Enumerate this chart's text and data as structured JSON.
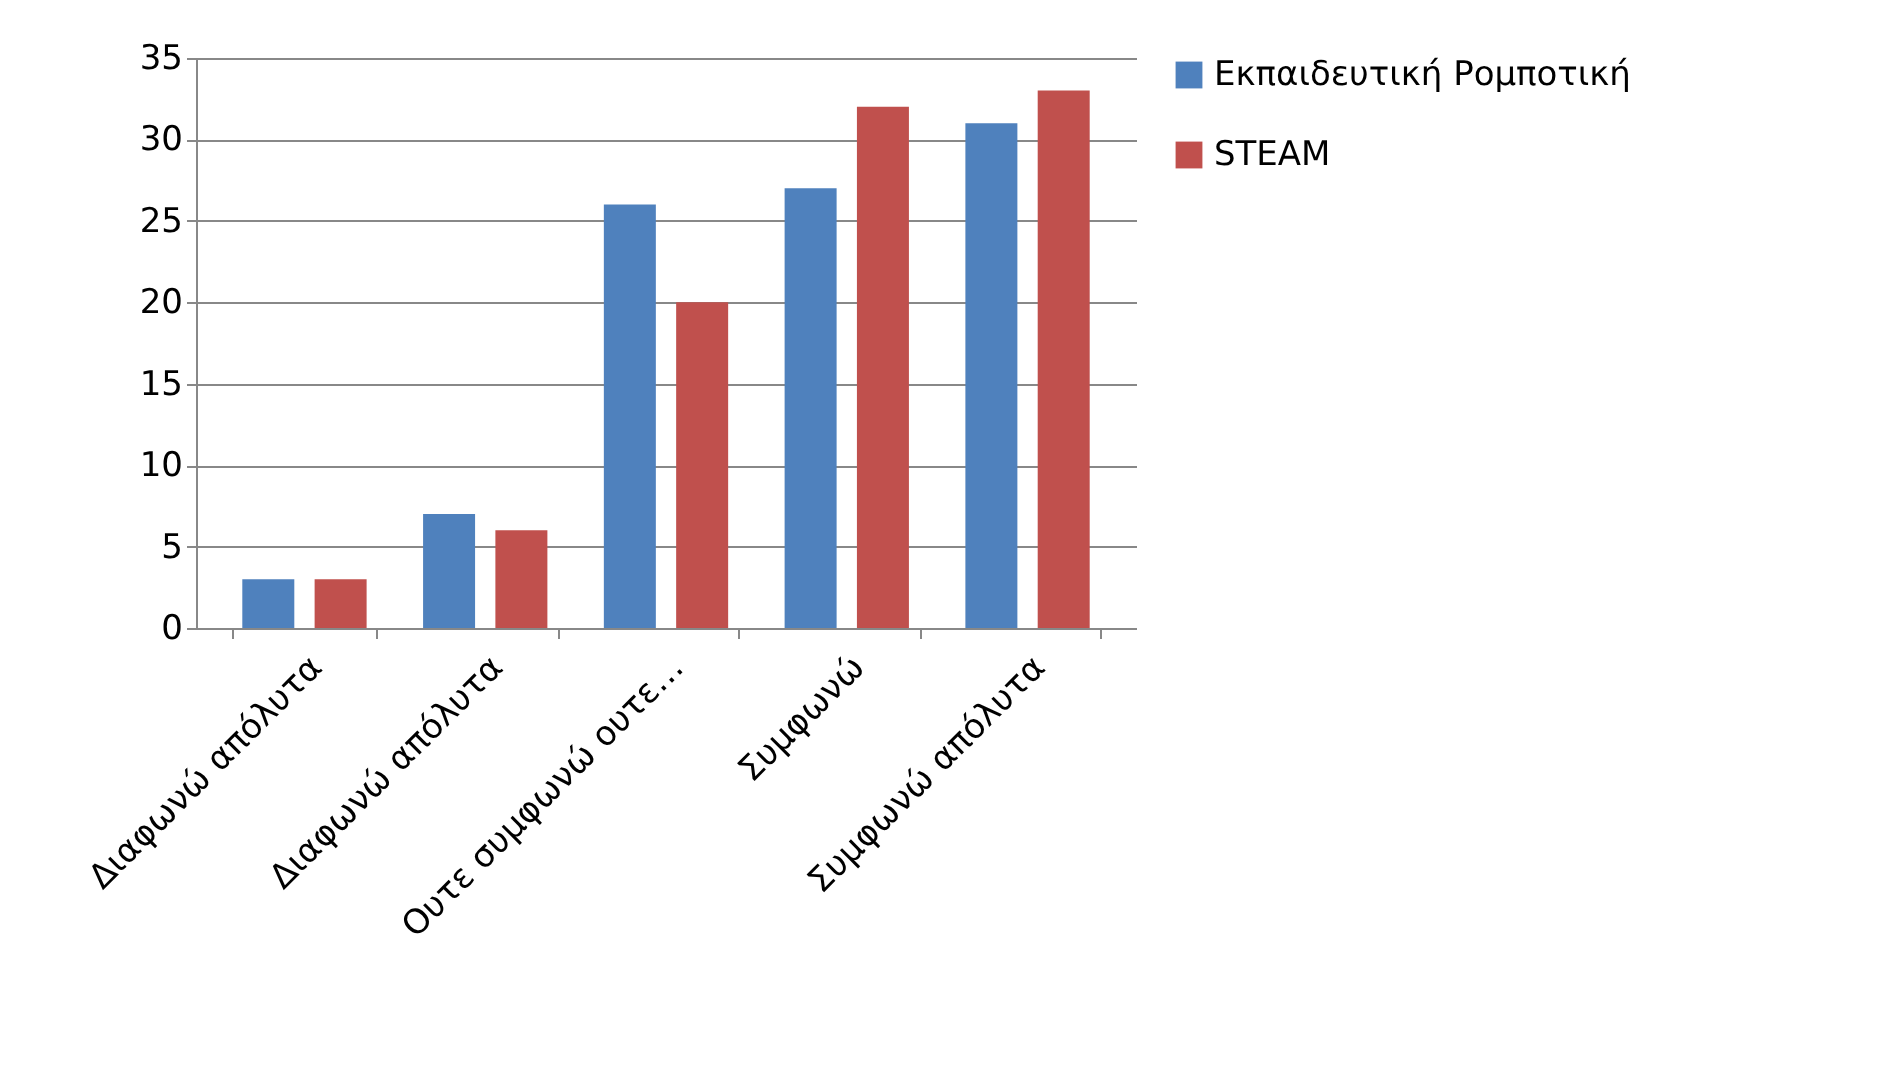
{
  "chart_data": {
    "type": "bar",
    "categories": [
      "Διαφωνώ απόλυτα",
      "Διαφωνώ απόλυτα",
      "Ουτε συμφωνώ ουτε…",
      "Συμφωνώ",
      "Συμφωνώ απόλυτα"
    ],
    "series": [
      {
        "name": "Εκπαιδευτική Ρομποτική",
        "color": "#4f81bd",
        "values": [
          3,
          7,
          26,
          27,
          31
        ]
      },
      {
        "name": "STEAM",
        "color": "#c0504d",
        "values": [
          3,
          6,
          20,
          32,
          33
        ]
      }
    ],
    "ylim": [
      0,
      35
    ],
    "yticks": [
      0,
      5,
      10,
      15,
      20,
      25,
      30,
      35
    ],
    "grid": "y",
    "legend": "right"
  }
}
